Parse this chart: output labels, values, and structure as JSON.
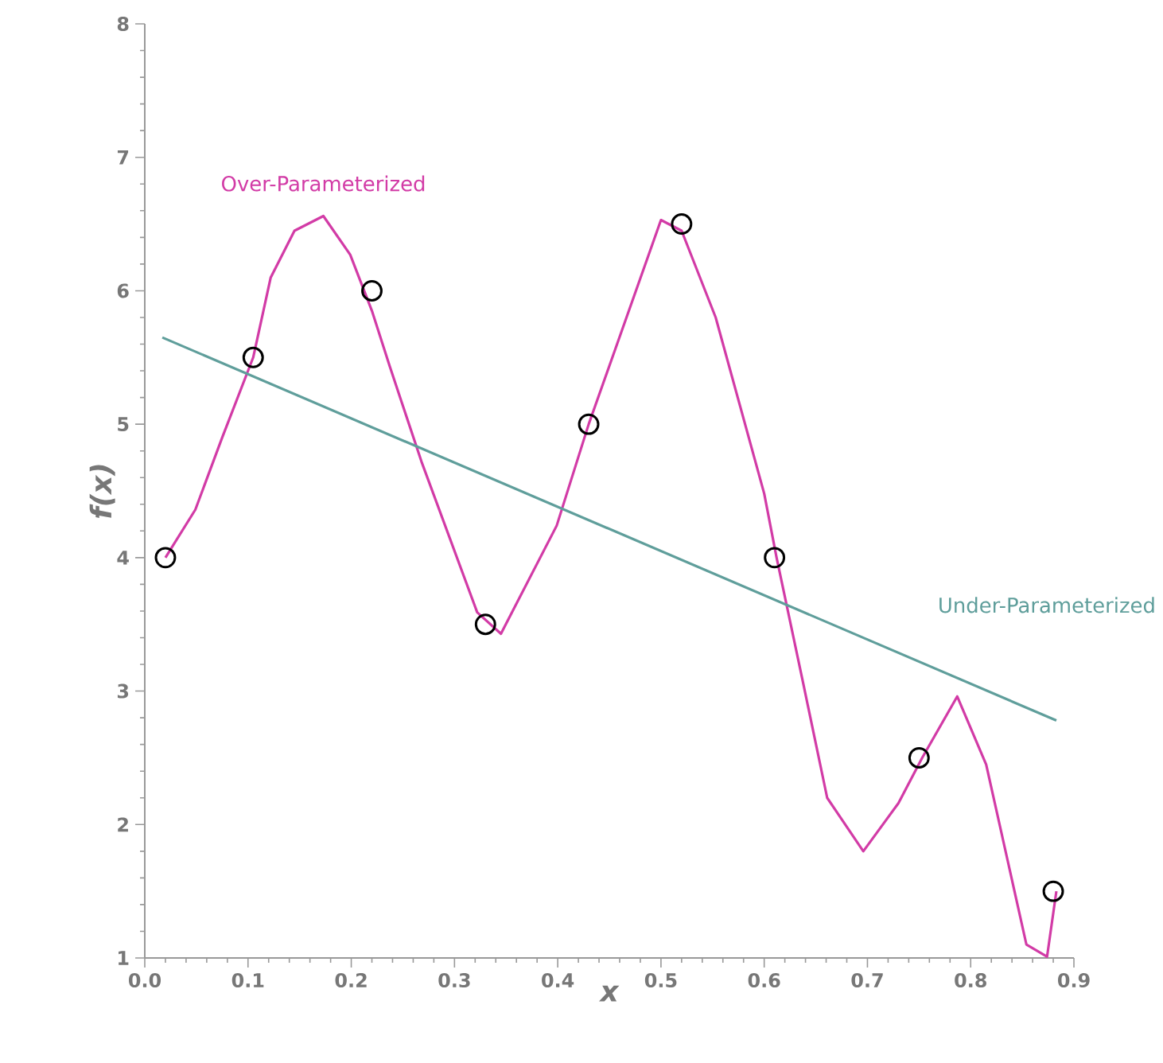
{
  "chart_data": {
    "type": "line",
    "xlabel": "x",
    "ylabel": "f(x)",
    "xlim": [
      0,
      0.9
    ],
    "ylim": [
      1,
      8
    ],
    "xticks": [
      {
        "value": 0,
        "label": "0.0"
      },
      0.1,
      0.2,
      0.3,
      0.4,
      0.5,
      0.6,
      0.7,
      0.8,
      0.9
    ],
    "yticks": [
      1,
      2,
      3,
      4,
      5,
      6,
      7,
      8
    ],
    "grid": false,
    "series": [
      {
        "name": "Over-Parameterized",
        "color": "#d23ba6",
        "x": [
          0.02,
          0.049,
          0.075,
          0.09,
          0.105,
          0.122,
          0.145,
          0.173,
          0.199,
          0.22,
          0.237,
          0.268,
          0.322,
          0.345,
          0.399,
          0.43,
          0.5,
          0.52,
          0.553,
          0.6,
          0.612,
          0.638,
          0.661,
          0.696,
          0.73,
          0.753,
          0.787,
          0.815,
          0.854,
          0.874,
          0.883
        ],
        "values": [
          4.0,
          4.36,
          4.9,
          5.2,
          5.5,
          6.1,
          6.45,
          6.56,
          6.27,
          5.85,
          5.44,
          4.72,
          3.59,
          3.43,
          4.24,
          5.0,
          6.53,
          6.45,
          5.8,
          4.48,
          4.0,
          3.05,
          2.2,
          1.8,
          2.16,
          2.5,
          2.96,
          2.45,
          1.1,
          1.01,
          1.5
        ]
      },
      {
        "name": "Under-Parameterized",
        "color": "#5f9e9b",
        "x": [
          0.017,
          0.883
        ],
        "values": [
          5.65,
          2.78
        ]
      },
      {
        "type": "scatter",
        "color": "#000000",
        "marker": "circle",
        "x": [
          0.02,
          0.105,
          0.22,
          0.33,
          0.43,
          0.52,
          0.61,
          0.75,
          0.88
        ],
        "values": [
          4,
          5.5,
          6,
          3.5,
          5,
          6.5,
          4,
          2.5,
          1.5
        ]
      }
    ]
  }
}
